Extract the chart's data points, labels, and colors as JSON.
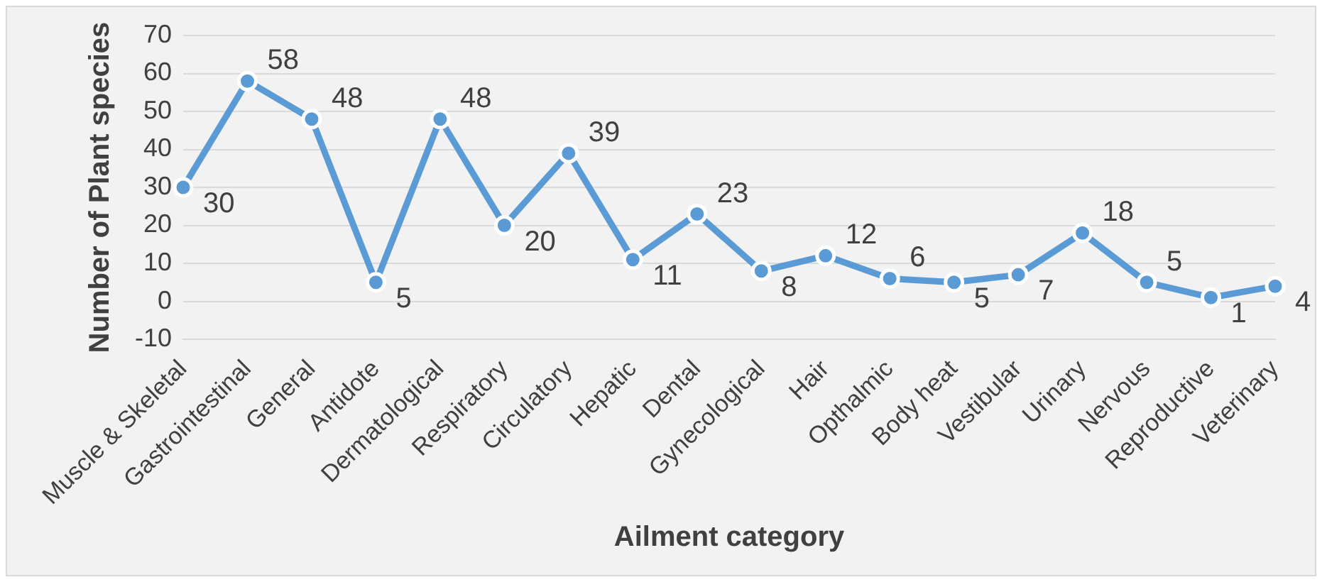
{
  "chart_data": {
    "type": "line",
    "xlabel": "Ailment category",
    "ylabel": "Number of Plant species",
    "categories": [
      "Muscle & Skeletal",
      "Gastrointestinal",
      "General",
      "Antidote",
      "Dermatological",
      "Respiratory",
      "Circulatory",
      "Hepatic",
      "Dental",
      "Gynecological",
      "Hair",
      "Opthalmic",
      "Body heat",
      "Vestibular",
      "Urinary",
      "Nervous",
      "Reproductive",
      "Veterinary"
    ],
    "series": [
      {
        "color": "#5b9bd5",
        "values": [
          30,
          58,
          48,
          5,
          48,
          20,
          39,
          11,
          23,
          8,
          12,
          6,
          5,
          7,
          18,
          5,
          1,
          4
        ]
      }
    ],
    "ylim": [
      -10,
      70
    ],
    "yticks": [
      -10,
      0,
      10,
      20,
      30,
      40,
      50,
      60,
      70
    ],
    "grid": "y",
    "marker": "circle",
    "line_style": "solid",
    "data_labels": true,
    "legend": false
  }
}
